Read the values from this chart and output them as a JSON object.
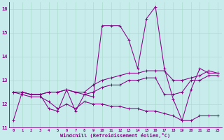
{
  "xlabel": "Windchill (Refroidissement éolien,°C)",
  "bg_color": "#c8ecec",
  "line_color": "#880088",
  "grid_color": "#aaddcc",
  "xlim": [
    -0.5,
    23.5
  ],
  "ylim": [
    11,
    16.3
  ],
  "yticks": [
    11,
    12,
    13,
    14,
    15,
    16
  ],
  "xticks": [
    0,
    1,
    2,
    3,
    4,
    5,
    6,
    7,
    8,
    9,
    10,
    11,
    12,
    13,
    14,
    15,
    16,
    17,
    18,
    19,
    20,
    21,
    22,
    23
  ],
  "series": [
    [
      11.3,
      12.5,
      12.4,
      12.4,
      11.8,
      11.7,
      12.6,
      11.7,
      12.4,
      12.3,
      15.3,
      15.3,
      15.3,
      14.7,
      13.5,
      15.6,
      16.1,
      13.5,
      12.2,
      11.3,
      12.6,
      13.5,
      13.3,
      13.3
    ],
    [
      12.5,
      12.5,
      12.4,
      12.4,
      12.5,
      12.5,
      12.6,
      12.5,
      12.5,
      12.8,
      13.0,
      13.1,
      13.2,
      13.3,
      13.3,
      13.4,
      13.4,
      13.4,
      13.0,
      13.0,
      13.1,
      13.2,
      13.4,
      13.3
    ],
    [
      12.5,
      12.5,
      12.4,
      12.4,
      12.5,
      12.5,
      12.6,
      12.5,
      12.4,
      12.5,
      12.7,
      12.8,
      12.8,
      13.0,
      13.0,
      13.1,
      13.1,
      12.4,
      12.4,
      12.5,
      13.0,
      13.0,
      13.2,
      13.2
    ],
    [
      12.5,
      12.4,
      12.3,
      12.3,
      12.1,
      11.8,
      12.0,
      11.8,
      12.1,
      12.0,
      12.0,
      11.9,
      11.9,
      11.8,
      11.8,
      11.7,
      11.7,
      11.6,
      11.5,
      11.3,
      11.3,
      11.5,
      11.5,
      11.5
    ]
  ]
}
